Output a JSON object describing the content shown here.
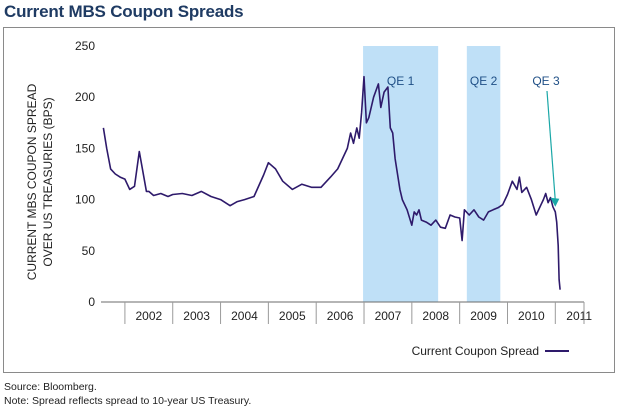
{
  "title": "Current MBS Coupon Spreads",
  "footnotes": {
    "source": "Source: Bloomberg.",
    "note": "Note: Spread reflects spread to 10-year US Treasury."
  },
  "colors": {
    "line": "#2e1a6b",
    "shade": "#bfe0f7",
    "qe_text": "#1f4f86",
    "arrow": "#1aa7a7"
  },
  "chart_data": {
    "type": "line",
    "title": "Current MBS Coupon Spreads",
    "ylabel": [
      "CURRENT MBS COUPON SPREAD",
      "OVER US TREASURIES (BPS)"
    ],
    "xlabel": "",
    "ylim": [
      0,
      250
    ],
    "yticks": [
      0,
      50,
      100,
      150,
      200,
      250
    ],
    "xlim": [
      2001.5,
      2011.6
    ],
    "xticks": [
      "2002",
      "2003",
      "2004",
      "2005",
      "2006",
      "2007",
      "2008",
      "2009",
      "2010",
      "2011"
    ],
    "grid": false,
    "legend_position": "bottom-right",
    "shaded_regions": [
      {
        "label": "QE 1",
        "start": 2006.98,
        "end": 2008.55
      },
      {
        "label": "QE 2",
        "start": 2009.15,
        "end": 2009.85
      }
    ],
    "annotations": [
      {
        "label": "QE 3",
        "arrow_to": {
          "x": 2011.0,
          "y": 93
        }
      }
    ],
    "series": [
      {
        "name": "Current Coupon Spread",
        "x": [
          2001.55,
          2001.62,
          2001.7,
          2001.8,
          2001.9,
          2002.0,
          2002.1,
          2002.2,
          2002.3,
          2002.45,
          2002.5,
          2002.6,
          2002.75,
          2002.9,
          2003.0,
          2003.2,
          2003.4,
          2003.6,
          2003.8,
          2004.0,
          2004.2,
          2004.35,
          2004.5,
          2004.7,
          2004.9,
          2005.0,
          2005.15,
          2005.3,
          2005.5,
          2005.7,
          2005.9,
          2006.1,
          2006.3,
          2006.45,
          2006.55,
          2006.65,
          2006.72,
          2006.78,
          2006.85,
          2006.9,
          2006.95,
          2007.0,
          2007.05,
          2007.1,
          2007.2,
          2007.3,
          2007.35,
          2007.42,
          2007.5,
          2007.55,
          2007.6,
          2007.65,
          2007.7,
          2007.75,
          2007.8,
          2007.9,
          2008.0,
          2008.05,
          2008.1,
          2008.15,
          2008.2,
          2008.3,
          2008.4,
          2008.5,
          2008.6,
          2008.7,
          2008.8,
          2008.9,
          2009.0,
          2009.05,
          2009.1,
          2009.2,
          2009.3,
          2009.4,
          2009.5,
          2009.6,
          2009.7,
          2009.8,
          2009.9,
          2010.0,
          2010.1,
          2010.2,
          2010.25,
          2010.3,
          2010.4,
          2010.5,
          2010.6,
          2010.7,
          2010.75,
          2010.8,
          2010.85,
          2010.9,
          2010.95,
          2011.0,
          2011.03,
          2011.06,
          2011.08,
          2011.1
        ],
        "values": [
          170,
          150,
          130,
          125,
          122,
          120,
          110,
          113,
          147,
          108,
          108,
          104,
          106,
          103,
          105,
          106,
          104,
          108,
          103,
          100,
          94,
          98,
          100,
          103,
          124,
          136,
          130,
          118,
          110,
          115,
          112,
          112,
          122,
          130,
          140,
          150,
          165,
          155,
          170,
          160,
          185,
          220,
          175,
          180,
          200,
          213,
          190,
          205,
          210,
          170,
          165,
          140,
          125,
          110,
          100,
          90,
          75,
          88,
          85,
          90,
          80,
          78,
          75,
          80,
          73,
          72,
          85,
          83,
          82,
          60,
          90,
          85,
          90,
          83,
          80,
          88,
          90,
          92,
          95,
          105,
          118,
          110,
          122,
          107,
          112,
          100,
          85,
          95,
          100,
          106,
          97,
          102,
          93,
          88,
          78,
          55,
          22,
          12
        ]
      }
    ]
  },
  "legend": {
    "label": "Current Coupon Spread"
  }
}
